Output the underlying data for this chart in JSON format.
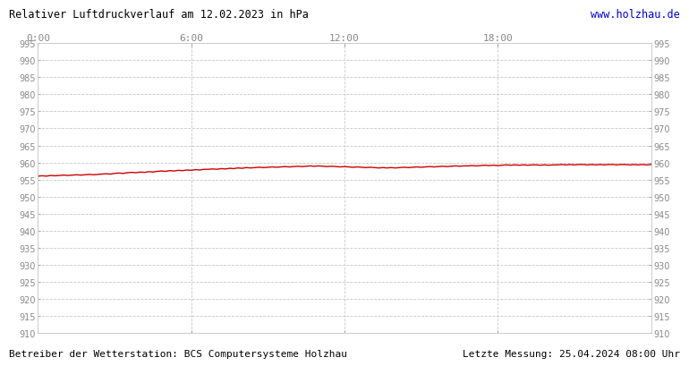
{
  "title": "Relativer Luftdruckverlauf am 12.02.2023 in hPa",
  "url": "www.holzhau.de",
  "footer_left": "Betreiber der Wetterstation: BCS Computersysteme Holzhau",
  "footer_right": "Letzte Messung: 25.04.2024 08:00 Uhr",
  "ylim": [
    910,
    995
  ],
  "ytick_step": 5,
  "xtick_labels": [
    "0:00",
    "6:00",
    "12:00",
    "18:00"
  ],
  "xtick_positions": [
    0.0,
    0.25,
    0.5,
    0.75
  ],
  "line_color": "#cc0000",
  "grid_color": "#bbbbbb",
  "bg_color": "#ffffff",
  "title_color": "#000000",
  "url_color": "#0000cc",
  "axis_label_color": "#888888",
  "pressure_x": [
    0.0,
    0.007,
    0.014,
    0.021,
    0.028,
    0.035,
    0.042,
    0.049,
    0.056,
    0.063,
    0.07,
    0.077,
    0.084,
    0.091,
    0.098,
    0.104,
    0.111,
    0.118,
    0.125,
    0.132,
    0.139,
    0.146,
    0.153,
    0.16,
    0.167,
    0.174,
    0.181,
    0.188,
    0.194,
    0.201,
    0.208,
    0.215,
    0.222,
    0.229,
    0.236,
    0.243,
    0.25,
    0.257,
    0.264,
    0.271,
    0.278,
    0.285,
    0.292,
    0.299,
    0.306,
    0.313,
    0.319,
    0.326,
    0.333,
    0.34,
    0.347,
    0.354,
    0.361,
    0.368,
    0.375,
    0.382,
    0.389,
    0.396,
    0.403,
    0.41,
    0.417,
    0.424,
    0.431,
    0.438,
    0.444,
    0.451,
    0.458,
    0.465,
    0.472,
    0.479,
    0.486,
    0.493,
    0.5,
    0.507,
    0.514,
    0.521,
    0.528,
    0.535,
    0.542,
    0.549,
    0.556,
    0.563,
    0.569,
    0.576,
    0.583,
    0.59,
    0.597,
    0.604,
    0.611,
    0.618,
    0.625,
    0.632,
    0.639,
    0.646,
    0.653,
    0.66,
    0.667,
    0.674,
    0.681,
    0.688,
    0.694,
    0.701,
    0.708,
    0.715,
    0.722,
    0.729,
    0.736,
    0.743,
    0.75,
    0.757,
    0.764,
    0.771,
    0.778,
    0.785,
    0.792,
    0.799,
    0.806,
    0.813,
    0.819,
    0.826,
    0.833,
    0.84,
    0.847,
    0.854,
    0.861,
    0.868,
    0.875,
    0.882,
    0.889,
    0.896,
    0.903,
    0.91,
    0.917,
    0.924,
    0.931,
    0.938,
    0.944,
    0.951,
    0.958,
    0.965,
    0.972,
    0.979,
    0.986,
    0.993,
    1.0
  ],
  "pressure_y": [
    956.0,
    956.1,
    956.0,
    956.2,
    956.1,
    956.2,
    956.3,
    956.2,
    956.3,
    956.4,
    956.3,
    956.4,
    956.5,
    956.4,
    956.5,
    956.6,
    956.7,
    956.6,
    956.8,
    956.9,
    956.8,
    957.0,
    957.1,
    957.0,
    957.2,
    957.1,
    957.3,
    957.2,
    957.4,
    957.5,
    957.4,
    957.6,
    957.5,
    957.7,
    957.6,
    957.8,
    957.7,
    957.9,
    957.8,
    958.0,
    958.0,
    958.1,
    958.0,
    958.2,
    958.1,
    958.3,
    958.2,
    958.4,
    958.3,
    958.5,
    958.4,
    958.5,
    958.6,
    958.5,
    958.6,
    958.7,
    958.6,
    958.7,
    958.8,
    958.7,
    958.8,
    958.9,
    958.8,
    958.9,
    959.0,
    958.9,
    959.0,
    958.9,
    958.8,
    958.9,
    958.8,
    958.7,
    958.8,
    958.7,
    958.6,
    958.7,
    958.6,
    958.5,
    958.6,
    958.5,
    958.4,
    958.5,
    958.4,
    958.5,
    958.4,
    958.5,
    958.6,
    958.5,
    958.6,
    958.7,
    958.6,
    958.7,
    958.8,
    958.7,
    958.8,
    958.9,
    958.8,
    958.9,
    959.0,
    958.9,
    959.0,
    959.0,
    959.1,
    959.0,
    959.1,
    959.2,
    959.1,
    959.2,
    959.1,
    959.2,
    959.3,
    959.2,
    959.3,
    959.2,
    959.3,
    959.2,
    959.3,
    959.3,
    959.2,
    959.3,
    959.2,
    959.3,
    959.3,
    959.4,
    959.3,
    959.4,
    959.3,
    959.4,
    959.4,
    959.3,
    959.4,
    959.3,
    959.4,
    959.3,
    959.4,
    959.4,
    959.3,
    959.4,
    959.4,
    959.3,
    959.4,
    959.3,
    959.4,
    959.3,
    959.4
  ]
}
